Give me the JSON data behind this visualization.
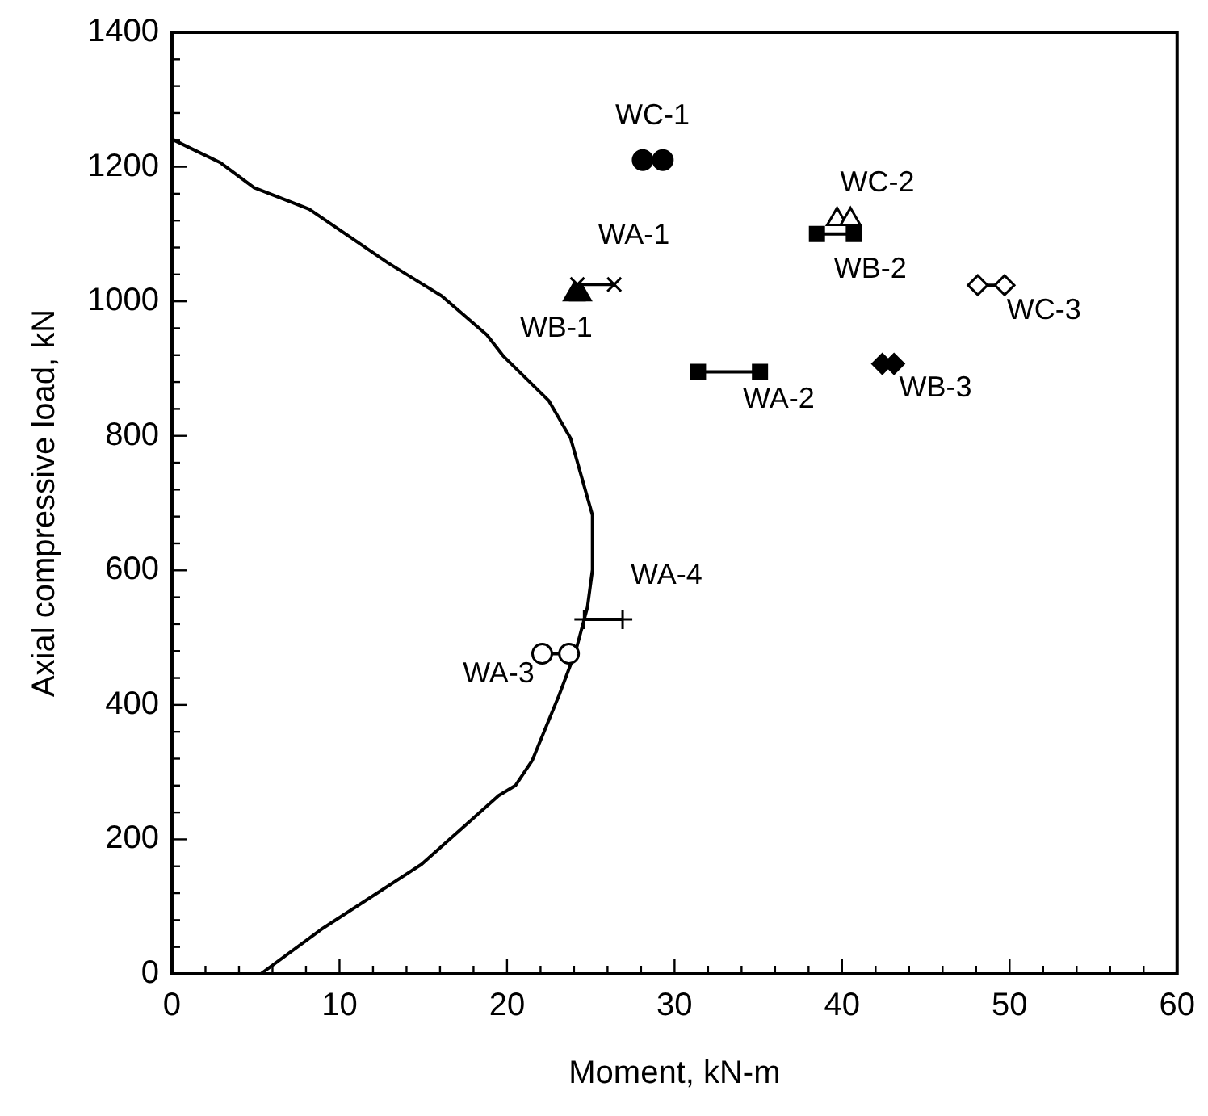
{
  "chart_data": {
    "type": "scatter",
    "xlabel": "Moment, kN-m",
    "ylabel": "Axial compressive load, kN",
    "xlim": [
      0,
      60
    ],
    "ylim": [
      0,
      1400
    ],
    "xticks": [
      0,
      {
        "value": 2,
        "label": null
      },
      {
        "value": 4,
        "label": null
      },
      {
        "value": 6,
        "label": null
      },
      {
        "value": 8,
        "label": null
      },
      10,
      {
        "value": 12,
        "label": null
      },
      {
        "value": 14,
        "label": null
      },
      {
        "value": 16,
        "label": null
      },
      {
        "value": 18,
        "label": null
      },
      20,
      {
        "value": 22,
        "label": null
      },
      {
        "value": 24,
        "label": null
      },
      {
        "value": 26,
        "label": null
      },
      {
        "value": 28,
        "label": null
      },
      30,
      {
        "value": 32,
        "label": null
      },
      {
        "value": 34,
        "label": null
      },
      {
        "value": 36,
        "label": null
      },
      {
        "value": 38,
        "label": null
      },
      40,
      {
        "value": 42,
        "label": null
      },
      {
        "value": 44,
        "label": null
      },
      {
        "value": 46,
        "label": null
      },
      {
        "value": 48,
        "label": null
      },
      50,
      {
        "value": 52,
        "label": null
      },
      {
        "value": 54,
        "label": null
      },
      {
        "value": 56,
        "label": null
      },
      {
        "value": 58,
        "label": null
      },
      60
    ],
    "yticks": [
      0,
      {
        "value": 40,
        "label": null
      },
      {
        "value": 80,
        "label": null
      },
      {
        "value": 120,
        "label": null
      },
      {
        "value": 160,
        "label": null
      },
      200,
      {
        "value": 240,
        "label": null
      },
      {
        "value": 280,
        "label": null
      },
      {
        "value": 320,
        "label": null
      },
      {
        "value": 360,
        "label": null
      },
      400,
      {
        "value": 440,
        "label": null
      },
      {
        "value": 480,
        "label": null
      },
      {
        "value": 520,
        "label": null
      },
      {
        "value": 560,
        "label": null
      },
      600,
      {
        "value": 640,
        "label": null
      },
      {
        "value": 680,
        "label": null
      },
      {
        "value": 720,
        "label": null
      },
      {
        "value": 760,
        "label": null
      },
      800,
      {
        "value": 840,
        "label": null
      },
      {
        "value": 880,
        "label": null
      },
      {
        "value": 920,
        "label": null
      },
      {
        "value": 960,
        "label": null
      },
      1000,
      {
        "value": 1040,
        "label": null
      },
      {
        "value": 1080,
        "label": null
      },
      {
        "value": 1120,
        "label": null
      },
      {
        "value": 1160,
        "label": null
      },
      1200,
      {
        "value": 1240,
        "label": null
      },
      {
        "value": 1280,
        "label": null
      },
      {
        "value": 1320,
        "label": null
      },
      {
        "value": 1360,
        "label": null
      },
      1400
    ],
    "grid": false,
    "legend": false,
    "line_style": "solid",
    "annotations": [
      {
        "text": "WC-1",
        "x": 28.1,
        "y": 1210
      },
      {
        "text": "WA-1",
        "x": 24.2,
        "y": 1025
      },
      {
        "text": "WB-1",
        "x": 24.0,
        "y": 1010
      },
      {
        "text": "WC-2",
        "x": 39.7,
        "y": 1122
      },
      {
        "text": "WB-2",
        "x": 38.5,
        "y": 1100
      },
      {
        "text": "WA-2",
        "x": 31.4,
        "y": 895
      },
      {
        "text": "WB-3",
        "x": 42.4,
        "y": 907
      },
      {
        "text": "WC-3",
        "x": 48.1,
        "y": 1024
      },
      {
        "text": "WA-4",
        "x": 24.6,
        "y": 527
      },
      {
        "text": "WA-3",
        "x": 22.1,
        "y": 476
      }
    ],
    "series": [
      {
        "type": "line",
        "marker": "none",
        "color": "#000000",
        "x": [
          0,
          2.9,
          4.9,
          8.2,
          12.9,
          16.1,
          18.8,
          19.8,
          22.5,
          23.8,
          24.7,
          25.1,
          25.1,
          24.8,
          24.1,
          23.1,
          21.5,
          20.5,
          19.5,
          14.9,
          8.9,
          5.3
        ],
        "values": [
          1241,
          1206,
          1169,
          1137,
          1057,
          1008,
          950,
          918,
          852,
          796,
          717,
          682,
          601,
          545,
          480,
          414,
          317,
          280,
          265,
          163,
          66,
          0
        ]
      },
      {
        "marker": "circle",
        "color": "#000000",
        "colors": [
          "#000000",
          "#000000"
        ],
        "x": [
          28.1,
          29.3
        ],
        "values": [
          1210,
          1210
        ]
      },
      {
        "marker": "cross",
        "color": "#000000",
        "colors": [
          "#000000",
          "#000000"
        ],
        "x": [
          24.2,
          26.4
        ],
        "values": [
          1025,
          1025
        ]
      },
      {
        "marker": "triangle",
        "color": "#000000",
        "colors": [
          "#000000",
          "#000000"
        ],
        "x": [
          24.0,
          24.4
        ],
        "values": [
          1010,
          1010
        ]
      },
      {
        "marker": "triangle",
        "color": "#000000",
        "colors": [
          "#ffffff",
          "#ffffff"
        ],
        "x": [
          39.7,
          40.5
        ],
        "values": [
          1122,
          1122
        ]
      },
      {
        "marker": "square",
        "color": "#000000",
        "colors": [
          "#000000",
          "#000000"
        ],
        "x": [
          38.5,
          40.7
        ],
        "values": [
          1100,
          1100
        ]
      },
      {
        "marker": "square",
        "color": "#000000",
        "colors": [
          "#000000",
          "#000000"
        ],
        "x": [
          31.4,
          35.1
        ],
        "values": [
          895,
          895
        ]
      },
      {
        "marker": "diamond",
        "color": "#000000",
        "colors": [
          "#000000",
          "#000000"
        ],
        "x": [
          42.4,
          43.1
        ],
        "values": [
          907,
          907
        ]
      },
      {
        "marker": "diamond",
        "color": "#000000",
        "colors": [
          "#ffffff",
          "#ffffff"
        ],
        "x": [
          48.1,
          49.7
        ],
        "values": [
          1024,
          1024
        ]
      },
      {
        "marker": "plus",
        "color": "#000000",
        "colors": [
          "#000000",
          "#000000"
        ],
        "x": [
          24.6,
          26.9
        ],
        "values": [
          527,
          527
        ]
      },
      {
        "marker": "circle",
        "color": "#000000",
        "colors": [
          "#ffffff",
          "#ffffff"
        ],
        "x": [
          22.1,
          23.7
        ],
        "values": [
          476,
          476
        ]
      }
    ]
  }
}
